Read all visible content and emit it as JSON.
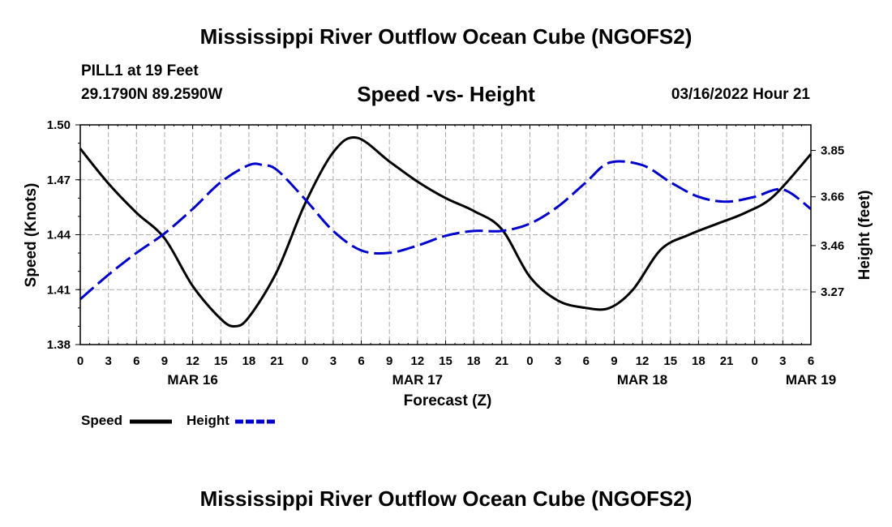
{
  "header": {
    "title": "Mississippi River Outflow Ocean Cube (NGOFS2)",
    "station_line1": "PILL1 at 19 Feet",
    "station_line2": "29.1790N  89.2590W",
    "subtitle": "Speed -vs- Height",
    "date": "03/16/2022 Hour 21"
  },
  "footer": {
    "title": "Mississippi River Outflow Ocean Cube (NGOFS2)"
  },
  "legend": {
    "speed_label": "Speed",
    "height_label": "Height"
  },
  "colors": {
    "speed": "#000000",
    "height": "#0000cc",
    "grid": "#aaaaaa"
  },
  "chart_data": {
    "type": "line",
    "xlabel": "Forecast (Z)",
    "ylabel_left": "Speed (Knots)",
    "ylabel_right": "Height (feet)",
    "x_range_hours": [
      0,
      78
    ],
    "x_tick_step_hours": 3,
    "x_tick_labels": [
      "0",
      "3",
      "6",
      "9",
      "12",
      "15",
      "18",
      "21",
      "0",
      "3",
      "6",
      "9",
      "12",
      "15",
      "18",
      "21",
      "0",
      "3",
      "6",
      "9",
      "12",
      "15",
      "18",
      "21",
      "0",
      "3",
      "6"
    ],
    "date_labels": [
      {
        "hour": 12,
        "label": "MAR 16"
      },
      {
        "hour": 36,
        "label": "MAR 17"
      },
      {
        "hour": 60,
        "label": "MAR 18"
      },
      {
        "hour": 78,
        "label": "MAR 19"
      }
    ],
    "ylim_left": [
      1.38,
      1.5
    ],
    "yticks_left": [
      "1.38",
      "1.41",
      "1.44",
      "1.47",
      "1.50"
    ],
    "ylim_right": [
      3.054,
      3.955
    ],
    "yticks_right": [
      "3.27",
      "3.46",
      "3.66",
      "3.85"
    ],
    "series": [
      {
        "name": "Speed",
        "axis": "left",
        "style": "solid",
        "x": [
          0,
          3,
          6,
          9,
          12,
          15,
          16.5,
          18,
          21,
          24,
          27,
          29.5,
          33,
          36,
          39,
          42,
          45,
          48,
          51,
          54,
          56.5,
          59,
          62,
          65,
          68,
          71,
          74,
          78
        ],
        "y": [
          1.487,
          1.468,
          1.452,
          1.438,
          1.412,
          1.394,
          1.39,
          1.395,
          1.42,
          1.457,
          1.485,
          1.493,
          1.48,
          1.469,
          1.46,
          1.453,
          1.443,
          1.417,
          1.404,
          1.4,
          1.4,
          1.41,
          1.432,
          1.44,
          1.446,
          1.452,
          1.461,
          1.484
        ]
      },
      {
        "name": "Height",
        "axis": "right",
        "style": "dashed",
        "x": [
          0,
          3,
          6,
          9,
          12,
          15,
          18,
          19.5,
          21,
          24,
          27,
          30,
          33,
          36,
          39,
          42,
          45,
          48,
          51,
          54,
          56.5,
          60,
          63,
          66,
          69,
          72,
          75,
          78
        ],
        "y": [
          3.24,
          3.34,
          3.43,
          3.51,
          3.61,
          3.72,
          3.79,
          3.79,
          3.77,
          3.65,
          3.52,
          3.44,
          3.43,
          3.46,
          3.5,
          3.52,
          3.52,
          3.55,
          3.62,
          3.72,
          3.8,
          3.79,
          3.72,
          3.66,
          3.64,
          3.66,
          3.69,
          3.61
        ]
      }
    ]
  }
}
